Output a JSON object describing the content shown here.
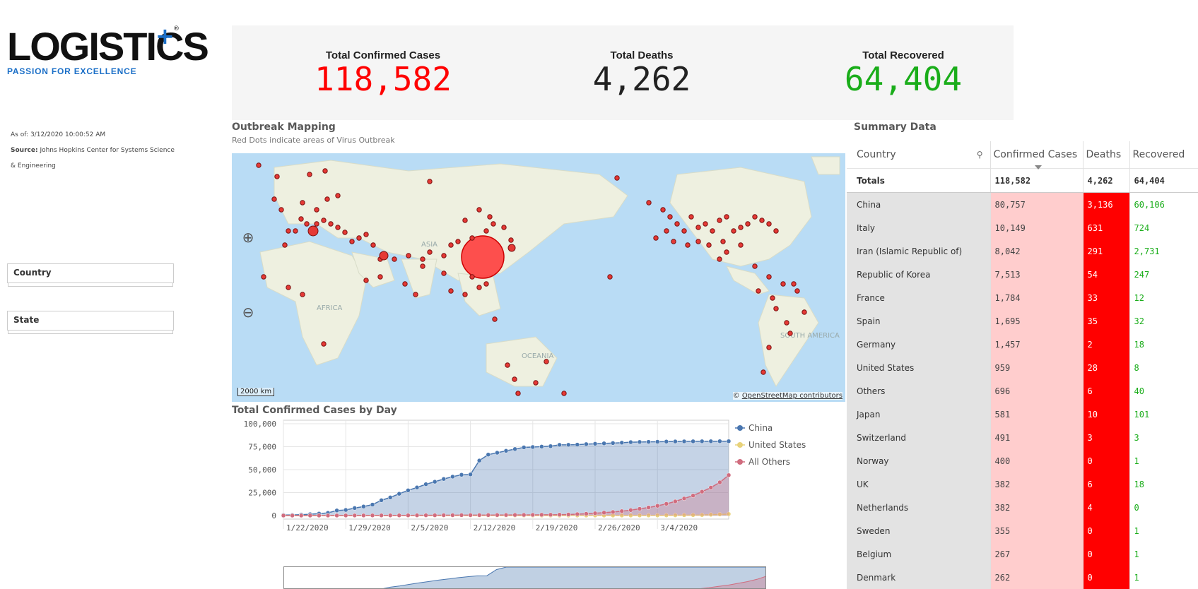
{
  "logo": {
    "word": "LOGISTICS",
    "plus": "+",
    "reg": "®",
    "tagline": "PASSION FOR EXCELLENCE"
  },
  "meta": {
    "as_of": "As of: 3/12/2020 10:00:52 AM",
    "source_label": "Source:",
    "source_text": "Johns Hopkins Center for Systems Science & Engineering"
  },
  "filters": {
    "country": "Country",
    "state": "State"
  },
  "kpis": {
    "confirmed_label": "Total Confirmed Cases",
    "confirmed_value": "118,582",
    "deaths_label": "Total Deaths",
    "deaths_value": "4,262",
    "recovered_label": "Total Recovered",
    "recovered_value": "64,404"
  },
  "colors": {
    "confirmed": "#ff0000",
    "deaths": "#222222",
    "recovered": "#1aad1a",
    "china": "#4a77b0",
    "us": "#e8d27a",
    "others": "#d06c7e"
  },
  "map": {
    "title": "Outbreak Mapping",
    "subtitle": "Red Dots indicate areas of Virus Outbreak",
    "labels": {
      "asia": "ASIA",
      "africa": "AFRICA",
      "oceania": "OCEANIA",
      "south_america": "SOUTH AMERICA"
    },
    "scale": "2000 km",
    "attribution_prefix": "©",
    "attribution_link": "OpenStreetMap contributors",
    "zoom_in_icon": "zoom-in-icon",
    "zoom_out_icon": "zoom-out-icon"
  },
  "summary": {
    "title": "Summary Data",
    "columns": [
      "Country",
      "Confirmed Cases",
      "Deaths",
      "Recovered"
    ],
    "totals": [
      "Totals",
      "118,582",
      "4,262",
      "64,404"
    ],
    "rows": [
      [
        "China",
        "80,757",
        "3,136",
        "60,106"
      ],
      [
        "Italy",
        "10,149",
        "631",
        "724"
      ],
      [
        "Iran (Islamic Republic of)",
        "8,042",
        "291",
        "2,731"
      ],
      [
        "Republic of Korea",
        "7,513",
        "54",
        "247"
      ],
      [
        "France",
        "1,784",
        "33",
        "12"
      ],
      [
        "Spain",
        "1,695",
        "35",
        "32"
      ],
      [
        "Germany",
        "1,457",
        "2",
        "18"
      ],
      [
        "United States",
        "959",
        "28",
        "8"
      ],
      [
        "Others",
        "696",
        "6",
        "40"
      ],
      [
        "Japan",
        "581",
        "10",
        "101"
      ],
      [
        "Switzerland",
        "491",
        "3",
        "3"
      ],
      [
        "Norway",
        "400",
        "0",
        "1"
      ],
      [
        "UK",
        "382",
        "6",
        "18"
      ],
      [
        "Netherlands",
        "382",
        "4",
        "0"
      ],
      [
        "Sweden",
        "355",
        "0",
        "1"
      ],
      [
        "Belgium",
        "267",
        "0",
        "1"
      ],
      [
        "Denmark",
        "262",
        "0",
        "1"
      ]
    ]
  },
  "chart_title": "Total Confirmed Cases by Day",
  "chart_data": {
    "type": "area",
    "x_ticks": [
      "1/22/2020",
      "1/29/2020",
      "2/5/2020",
      "2/12/2020",
      "2/19/2020",
      "2/26/2020",
      "3/4/2020"
    ],
    "y_ticks": [
      "100,000",
      "75,000",
      "50,000",
      "25,000",
      "0"
    ],
    "ylim": [
      0,
      100000
    ],
    "grid": true,
    "legend_position": "right",
    "series": [
      {
        "name": "China",
        "values": [
          548,
          643,
          920,
          1406,
          2075,
          2877,
          5509,
          6087,
          8141,
          9802,
          11891,
          16630,
          19716,
          23707,
          27440,
          30587,
          34110,
          36814,
          39829,
          42354,
          44386,
          44759,
          59895,
          66358,
          68413,
          70513,
          72434,
          74211,
          74619,
          75077,
          75550,
          77001,
          77022,
          77241,
          77754,
          78166,
          78600,
          78928,
          79356,
          79932,
          80136,
          80261,
          80386,
          80537,
          80690,
          80770,
          80823,
          80860,
          80887,
          80921,
          80932
        ]
      },
      {
        "name": "United States",
        "values": [
          1,
          1,
          2,
          2,
          5,
          5,
          5,
          5,
          5,
          7,
          8,
          8,
          11,
          11,
          11,
          11,
          11,
          11,
          11,
          11,
          12,
          12,
          13,
          13,
          13,
          13,
          13,
          13,
          13,
          13,
          15,
          15,
          15,
          51,
          51,
          57,
          58,
          60,
          68,
          74,
          98,
          118,
          149,
          217,
          262,
          402,
          518,
          583,
          959,
          1281,
          1663
        ]
      },
      {
        "name": "All Others",
        "values": [
          6,
          11,
          20,
          27,
          38,
          43,
          58,
          70,
          94,
          131,
          150,
          164,
          187,
          198,
          223,
          246,
          282,
          324,
          376,
          417,
          433,
          443,
          478,
          520,
          557,
          600,
          646,
          693,
          742,
          823,
          860,
          972,
          1151,
          1546,
          1946,
          2454,
          3150,
          3871,
          4763,
          5927,
          7345,
          8785,
          10566,
          12749,
          15400,
          18604,
          21736,
          26030,
          30458,
          36176,
          44000
        ]
      }
    ]
  },
  "mini_chart": {
    "label": "range-overview"
  }
}
